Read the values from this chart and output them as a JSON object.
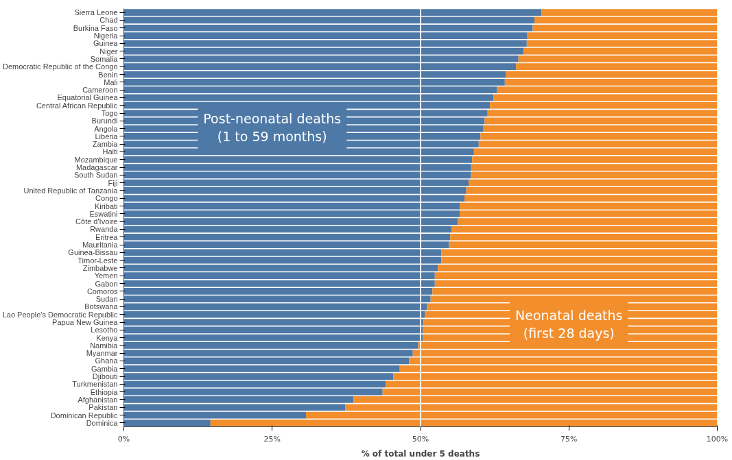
{
  "chart_data": {
    "type": "bar",
    "orientation": "horizontal",
    "stacked": true,
    "xlabel": "% of total under 5 deaths",
    "categories": [
      "Sierra Leone",
      "Chad",
      "Burkina Faso",
      "Nigeria",
      "Guinea",
      "Niger",
      "Somalia",
      "Democratic Republic of the Congo",
      "Benin",
      "Mali",
      "Cameroon",
      "Equatorial Guinea",
      "Central African Republic",
      "Togo",
      "Burundi",
      "Angola",
      "Liberia",
      "Zambia",
      "Haiti",
      "Mozambique",
      "Madagascar",
      "South Sudan",
      "Fiji",
      "United Republic of Tanzania",
      "Congo",
      "Kiribati",
      "Eswatini",
      "Côte d'Ivoire",
      "Rwanda",
      "Eritrea",
      "Mauritania",
      "Guinea-Bissau",
      "Timor-Leste",
      "Zimbabwe",
      "Yemen",
      "Gabon",
      "Comoros",
      "Sudan",
      "Botswana",
      "Lao People's Democratic Republic",
      "Papua New Guinea",
      "Lesotho",
      "Kenya",
      "Namibia",
      "Myanmar",
      "Ghana",
      "Gambia",
      "Djibouti",
      "Turkmenistan",
      "Ethiopia",
      "Afghanistan",
      "Pakistan",
      "Dominican Republic",
      "Dominica"
    ],
    "series": [
      {
        "name": "Post-neonatal deaths\n(1 to 59 months)",
        "color": "#4e79a7",
        "values": [
          70.4,
          69.2,
          68.9,
          68.0,
          67.9,
          67.4,
          66.5,
          66.1,
          64.4,
          64.2,
          62.9,
          62.3,
          61.7,
          61.3,
          60.8,
          60.6,
          60.1,
          59.8,
          59.0,
          58.7,
          58.6,
          58.5,
          58.1,
          57.7,
          57.4,
          56.6,
          56.6,
          56.3,
          55.2,
          55.0,
          54.8,
          53.5,
          53.5,
          52.9,
          52.4,
          52.4,
          52.0,
          51.7,
          51.1,
          50.7,
          50.5,
          50.4,
          50.4,
          49.6,
          48.7,
          48.1,
          46.5,
          45.4,
          44.1,
          43.6,
          38.7,
          37.3,
          30.7,
          14.6
        ]
      },
      {
        "name": "Neonatal deaths\n(first 28 days)",
        "color": "#f28e2b",
        "values": [
          29.6,
          30.8,
          31.1,
          32.0,
          32.1,
          32.6,
          33.5,
          33.9,
          35.6,
          35.8,
          37.1,
          37.7,
          38.3,
          38.7,
          39.2,
          39.4,
          39.9,
          40.2,
          41.0,
          41.3,
          41.4,
          41.5,
          41.9,
          42.3,
          42.6,
          43.4,
          43.4,
          43.7,
          44.8,
          45.0,
          45.2,
          46.5,
          46.5,
          47.1,
          47.6,
          47.6,
          48.0,
          48.3,
          48.9,
          49.3,
          49.5,
          49.6,
          49.6,
          50.4,
          51.3,
          51.9,
          53.5,
          54.6,
          55.9,
          56.4,
          61.3,
          62.7,
          69.3,
          85.4
        ]
      }
    ],
    "xlim": [
      0,
      100
    ],
    "xticks": [
      {
        "value": 0,
        "label": "0%"
      },
      {
        "value": 25,
        "label": "25%"
      },
      {
        "value": 50,
        "label": "50%"
      },
      {
        "value": 75,
        "label": "75%"
      },
      {
        "value": 100,
        "label": "100%"
      }
    ],
    "ref_lines": [
      {
        "axis": "x",
        "value": 50,
        "color": "#ffffff"
      }
    ],
    "grid": false
  }
}
